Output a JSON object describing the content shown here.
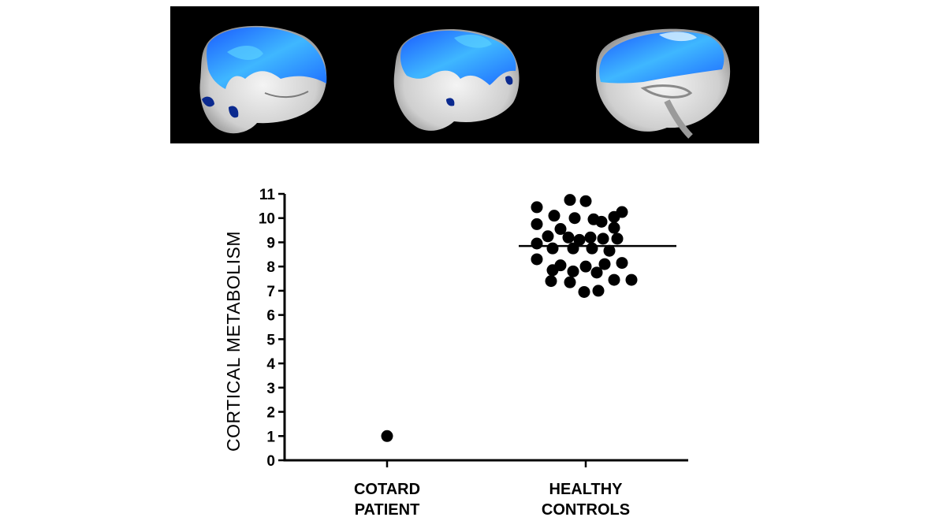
{
  "colors": {
    "background": "#ffffff",
    "strip_background": "#000000",
    "activation_blue": "#1e6cff",
    "activation_light": "#38b8ff",
    "activation_dark": "#0a1f7a",
    "brain_gray": "#d8d8d8",
    "marker": "#000000"
  },
  "brain_views": [
    {
      "name": "left-lateral"
    },
    {
      "name": "right-lateral"
    },
    {
      "name": "medial-sagittal"
    }
  ],
  "chart_data": {
    "type": "scatter",
    "ylabel": "CORTICAL METABOLISM",
    "xlabel": "",
    "ylim": [
      0,
      11
    ],
    "yticks": [
      "0",
      "1",
      "2",
      "3",
      "4",
      "5",
      "6",
      "7",
      "8",
      "9",
      "10",
      "11"
    ],
    "categories": [
      "COTARD PATIENT",
      "HEALTHY CONTROLS"
    ],
    "category_lines": [
      [
        "COTARD",
        "PATIENT"
      ],
      [
        "HEALTHY",
        "CONTROLS"
      ]
    ],
    "series": [
      {
        "name": "COTARD PATIENT",
        "category_index": 0,
        "points": [
          {
            "offset": 0,
            "value": 1.0
          }
        ]
      },
      {
        "name": "HEALTHY CONTROLS",
        "category_index": 1,
        "points": [
          {
            "offset": -0.62,
            "value": 10.45
          },
          {
            "offset": -0.2,
            "value": 10.75
          },
          {
            "offset": 0.0,
            "value": 10.7
          },
          {
            "offset": 0.46,
            "value": 10.25
          },
          {
            "offset": -0.4,
            "value": 10.1
          },
          {
            "offset": -0.14,
            "value": 10.0
          },
          {
            "offset": 0.1,
            "value": 9.95
          },
          {
            "offset": 0.36,
            "value": 10.05
          },
          {
            "offset": -0.62,
            "value": 9.75
          },
          {
            "offset": -0.32,
            "value": 9.55
          },
          {
            "offset": 0.2,
            "value": 9.85
          },
          {
            "offset": 0.36,
            "value": 9.6
          },
          {
            "offset": -0.48,
            "value": 9.25
          },
          {
            "offset": -0.22,
            "value": 9.2
          },
          {
            "offset": -0.08,
            "value": 9.1
          },
          {
            "offset": 0.06,
            "value": 9.2
          },
          {
            "offset": 0.22,
            "value": 9.15
          },
          {
            "offset": 0.4,
            "value": 9.15
          },
          {
            "offset": -0.62,
            "value": 8.95
          },
          {
            "offset": -0.42,
            "value": 8.75
          },
          {
            "offset": -0.16,
            "value": 8.75
          },
          {
            "offset": 0.08,
            "value": 8.75
          },
          {
            "offset": 0.3,
            "value": 8.65
          },
          {
            "offset": -0.62,
            "value": 8.3
          },
          {
            "offset": -0.32,
            "value": 8.05
          },
          {
            "offset": 0.0,
            "value": 8.0
          },
          {
            "offset": 0.24,
            "value": 8.1
          },
          {
            "offset": 0.46,
            "value": 8.15
          },
          {
            "offset": -0.42,
            "value": 7.85
          },
          {
            "offset": -0.16,
            "value": 7.8
          },
          {
            "offset": 0.14,
            "value": 7.75
          },
          {
            "offset": -0.44,
            "value": 7.4
          },
          {
            "offset": -0.2,
            "value": 7.35
          },
          {
            "offset": 0.36,
            "value": 7.45
          },
          {
            "offset": 0.58,
            "value": 7.45
          },
          {
            "offset": -0.02,
            "value": 6.95
          },
          {
            "offset": 0.16,
            "value": 7.0
          }
        ],
        "mean": 8.85
      }
    ]
  }
}
